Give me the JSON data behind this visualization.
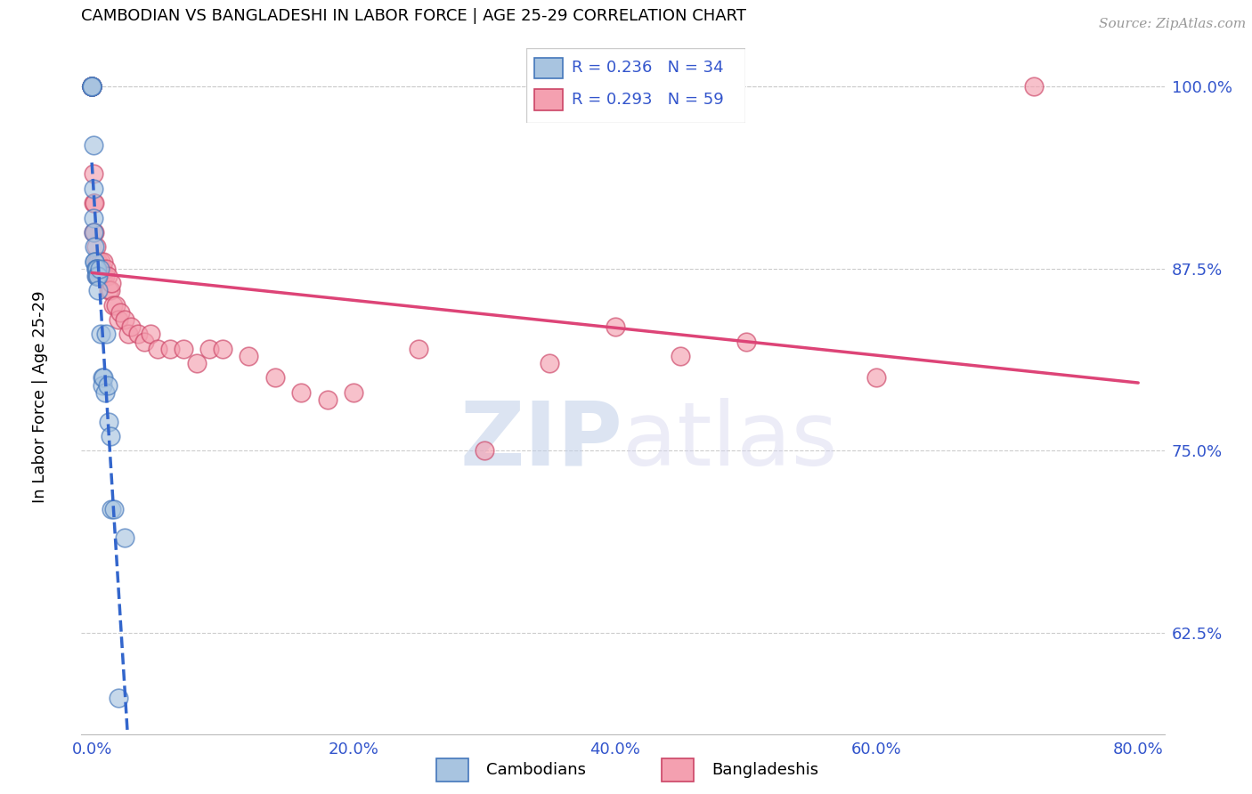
{
  "title": "CAMBODIAN VS BANGLADESHI IN LABOR FORCE | AGE 25-29 CORRELATION CHART",
  "source": "Source: ZipAtlas.com",
  "xlim": [
    -0.008,
    0.82
  ],
  "ylim": [
    0.555,
    1.035
  ],
  "ylabel_ticks": [
    0.625,
    0.75,
    0.875,
    1.0
  ],
  "ylabel_tick_labels": [
    "62.5%",
    "75.0%",
    "87.5%",
    "100.0%"
  ],
  "xlabel_ticks": [
    0.0,
    0.2,
    0.4,
    0.6,
    0.8
  ],
  "xlabel_tick_labels": [
    "0.0%",
    "20.0%",
    "40.0%",
    "60.0%",
    "80.0%"
  ],
  "watermark_zip": "ZIP",
  "watermark_atlas": "atlas",
  "cambodian_color": "#a8c4e0",
  "cambodian_edge_color": "#4477bb",
  "bangladeshi_color": "#f4a0b0",
  "bangladeshi_edge_color": "#cc4466",
  "cambodian_line_color": "#3366cc",
  "bangladeshi_line_color": "#dd4477",
  "R_cambodian": 0.236,
  "N_cambodian": 34,
  "R_bangladeshi": 0.293,
  "N_bangladeshi": 59,
  "legend_text_color": "#3355cc",
  "tick_color": "#3355cc",
  "source_color": "#999999",
  "cambodian_x": [
    0.0,
    0.0,
    0.0,
    0.0,
    0.0,
    0.0,
    0.001,
    0.001,
    0.001,
    0.001,
    0.002,
    0.002,
    0.002,
    0.003,
    0.003,
    0.003,
    0.004,
    0.004,
    0.005,
    0.005,
    0.006,
    0.007,
    0.008,
    0.008,
    0.009,
    0.01,
    0.011,
    0.012,
    0.013,
    0.014,
    0.015,
    0.017,
    0.02,
    0.025
  ],
  "cambodian_y": [
    1.0,
    1.0,
    1.0,
    1.0,
    1.0,
    1.0,
    0.96,
    0.93,
    0.91,
    0.9,
    0.89,
    0.88,
    0.88,
    0.875,
    0.875,
    0.87,
    0.875,
    0.87,
    0.87,
    0.86,
    0.875,
    0.83,
    0.8,
    0.795,
    0.8,
    0.79,
    0.83,
    0.795,
    0.77,
    0.76,
    0.71,
    0.71,
    0.58,
    0.69
  ],
  "bangladeshi_x": [
    0.0,
    0.0,
    0.0,
    0.0,
    0.0,
    0.001,
    0.001,
    0.001,
    0.002,
    0.002,
    0.003,
    0.003,
    0.004,
    0.004,
    0.005,
    0.005,
    0.006,
    0.006,
    0.007,
    0.007,
    0.008,
    0.008,
    0.009,
    0.009,
    0.01,
    0.011,
    0.012,
    0.013,
    0.014,
    0.015,
    0.016,
    0.018,
    0.02,
    0.022,
    0.025,
    0.028,
    0.03,
    0.035,
    0.04,
    0.045,
    0.05,
    0.06,
    0.07,
    0.08,
    0.09,
    0.1,
    0.12,
    0.14,
    0.16,
    0.18,
    0.2,
    0.25,
    0.3,
    0.35,
    0.4,
    0.45,
    0.5,
    0.6,
    0.72
  ],
  "bangladeshi_y": [
    1.0,
    1.0,
    1.0,
    1.0,
    1.0,
    0.94,
    0.92,
    0.9,
    0.92,
    0.9,
    0.89,
    0.88,
    0.88,
    0.87,
    0.88,
    0.87,
    0.875,
    0.87,
    0.88,
    0.87,
    0.875,
    0.87,
    0.88,
    0.87,
    0.87,
    0.875,
    0.87,
    0.86,
    0.86,
    0.865,
    0.85,
    0.85,
    0.84,
    0.845,
    0.84,
    0.83,
    0.835,
    0.83,
    0.825,
    0.83,
    0.82,
    0.82,
    0.82,
    0.81,
    0.82,
    0.82,
    0.815,
    0.8,
    0.79,
    0.785,
    0.79,
    0.82,
    0.75,
    0.81,
    0.835,
    0.815,
    0.825,
    0.8,
    1.0
  ]
}
